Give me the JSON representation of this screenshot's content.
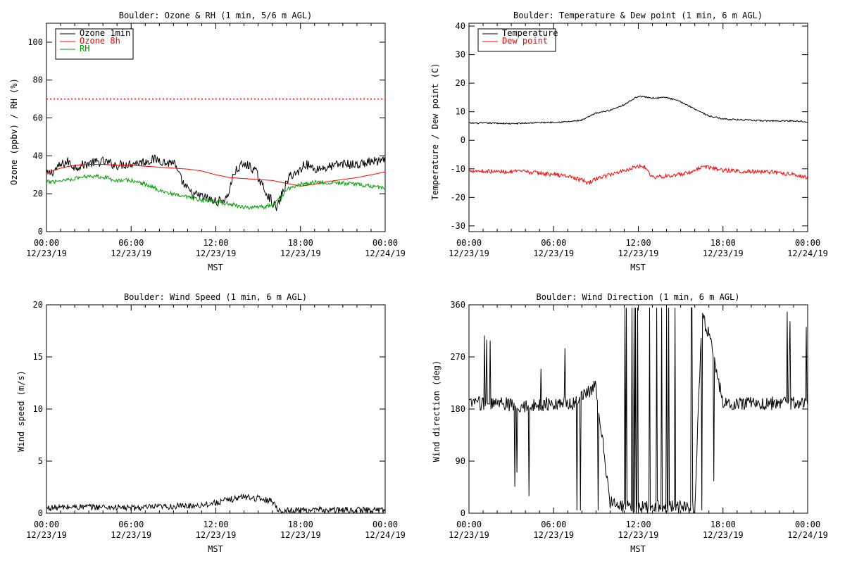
{
  "chart_data": [
    {
      "type": "line",
      "title": "Boulder: Ozone & RH (1 min, 5/6 m AGL)",
      "xlabel": "MST",
      "ylabel": "Ozone (ppbv) / RH (%)",
      "xlim": [
        0,
        24
      ],
      "ylim": [
        0,
        110
      ],
      "yticks": [
        0,
        20,
        40,
        60,
        80,
        100
      ],
      "xticks": [
        {
          "time": "00:00",
          "date": "12/23/19"
        },
        {
          "time": "06:00",
          "date": "12/23/19"
        },
        {
          "time": "12:00",
          "date": "12/23/19"
        },
        {
          "time": "18:00",
          "date": "12/23/19"
        },
        {
          "time": "00:00",
          "date": "12/24/19"
        }
      ],
      "legend_position": "top-left",
      "reference_lines": [
        {
          "y": 70,
          "color": "#ff0000",
          "style": "dotted"
        }
      ],
      "series": [
        {
          "name": "Ozone 1min",
          "color": "#000000",
          "noise": 2.5,
          "x": [
            0,
            0.5,
            1,
            1.5,
            2,
            3,
            4,
            5,
            6,
            7,
            7.5,
            8,
            8.5,
            9,
            9.3,
            9.8,
            10.3,
            10.8,
            11.3,
            11.8,
            12.3,
            12.8,
            13.3,
            13.8,
            14.3,
            14.8,
            15.3,
            15.8,
            16.3,
            16.8,
            17.3,
            17.8,
            18.3,
            19,
            20,
            21,
            22,
            23,
            24
          ],
          "y": [
            30,
            32,
            35,
            37,
            34,
            36,
            37,
            35,
            36,
            37,
            38,
            38,
            36,
            37,
            31,
            24,
            20,
            19,
            18,
            16,
            16,
            18,
            31,
            35,
            35,
            32,
            24,
            18,
            12,
            22,
            30,
            31,
            36,
            33,
            34,
            36,
            35,
            37,
            37
          ]
        },
        {
          "name": "Ozone 8h",
          "color": "#ff0000",
          "noise": 0,
          "x": [
            0,
            1,
            2,
            3,
            4,
            5,
            6,
            7,
            8,
            9,
            10,
            11,
            12,
            13,
            14,
            15,
            16,
            17,
            18,
            19,
            20,
            21,
            22,
            23,
            24
          ],
          "y": [
            31,
            33.5,
            35,
            35.5,
            35.5,
            35,
            35,
            34.5,
            34,
            33.5,
            33,
            32,
            30,
            28.5,
            28,
            27.5,
            27,
            25.5,
            24,
            25,
            26.5,
            27.5,
            28.5,
            30,
            31.5
          ]
        },
        {
          "name": "RH",
          "color": "#00a000",
          "noise": 1.1,
          "x": [
            0,
            1,
            2,
            3,
            4,
            5,
            6,
            7,
            8,
            9,
            10,
            11,
            12,
            13,
            14,
            15,
            16,
            16.5,
            17,
            18,
            19,
            20,
            21,
            22,
            23,
            24
          ],
          "y": [
            26,
            27,
            28,
            29.5,
            29,
            27,
            27,
            25,
            22,
            19.5,
            18,
            16.5,
            16,
            14.5,
            13,
            12.5,
            14,
            17,
            22,
            25,
            26,
            26,
            25.5,
            25,
            24,
            23
          ]
        }
      ]
    },
    {
      "type": "line",
      "title": "Boulder: Temperature & Dew point (1 min, 6 m AGL)",
      "xlabel": "MST",
      "ylabel": "Temperature / Dew point (C)",
      "xlim": [
        0,
        24
      ],
      "ylim": [
        -32,
        41
      ],
      "yticks": [
        -30,
        -20,
        -10,
        0,
        10,
        20,
        30,
        40
      ],
      "xticks": [
        {
          "time": "00:00",
          "date": "12/23/19"
        },
        {
          "time": "06:00",
          "date": "12/23/19"
        },
        {
          "time": "12:00",
          "date": "12/23/19"
        },
        {
          "time": "18:00",
          "date": "12/23/19"
        },
        {
          "time": "00:00",
          "date": "12/24/19"
        }
      ],
      "legend_position": "top-left",
      "reference_lines": [],
      "series": [
        {
          "name": "Temperature",
          "color": "#000000",
          "noise": 0.25,
          "x": [
            0,
            1,
            2,
            3,
            4,
            5,
            6,
            7,
            8,
            9,
            10,
            11,
            12,
            13,
            14,
            15,
            16,
            17,
            18,
            19,
            20,
            21,
            22,
            23,
            24
          ],
          "y": [
            6,
            6,
            6,
            5.8,
            6,
            6.2,
            6.3,
            6.5,
            7,
            9.5,
            10.5,
            12.5,
            15.5,
            14.8,
            15,
            13.5,
            11,
            8.5,
            7.5,
            7.2,
            7,
            6.8,
            6.8,
            6.8,
            6.5
          ]
        },
        {
          "name": "Dew point",
          "color": "#ff0000",
          "noise": 0.7,
          "x": [
            0,
            1,
            2,
            3,
            4,
            5,
            6,
            7,
            8,
            8.5,
            9,
            10,
            11,
            12,
            12.5,
            13,
            14,
            15,
            16,
            16.5,
            17,
            18,
            19,
            20,
            21,
            22,
            23,
            24
          ],
          "y": [
            -10.5,
            -10.8,
            -11,
            -11,
            -11,
            -11.5,
            -12,
            -12.5,
            -14,
            -15,
            -13.5,
            -12,
            -10.5,
            -9,
            -9.5,
            -13,
            -12.5,
            -12,
            -11,
            -9,
            -9.5,
            -10.5,
            -10.8,
            -11,
            -11,
            -11.5,
            -12,
            -13
          ]
        }
      ]
    },
    {
      "type": "line",
      "title": "Boulder: Wind Speed (1 min, 6 m AGL)",
      "xlabel": "MST",
      "ylabel": "Wind speed (m/s)",
      "xlim": [
        0,
        24
      ],
      "ylim": [
        0,
        20
      ],
      "yticks": [
        0,
        5,
        10,
        15,
        20
      ],
      "xticks": [
        {
          "time": "00:00",
          "date": "12/23/19"
        },
        {
          "time": "06:00",
          "date": "12/23/19"
        },
        {
          "time": "12:00",
          "date": "12/23/19"
        },
        {
          "time": "18:00",
          "date": "12/23/19"
        },
        {
          "time": "00:00",
          "date": "12/24/19"
        }
      ],
      "legend_position": "none",
      "reference_lines": [],
      "series": [
        {
          "name": "",
          "color": "#000000",
          "noise": 0.3,
          "x": [
            0,
            2,
            4,
            6,
            8,
            10,
            11,
            12,
            13,
            14,
            15,
            16,
            16.5,
            18,
            20,
            22,
            24
          ],
          "y": [
            0.5,
            0.6,
            0.6,
            0.5,
            0.6,
            0.7,
            0.8,
            1.0,
            1.3,
            1.6,
            1.4,
            1.2,
            0.2,
            0.3,
            0.3,
            0.3,
            0.3
          ]
        }
      ]
    },
    {
      "type": "line",
      "title": "Boulder: Wind Direction (1 min, 6 m AGL)",
      "xlabel": "MST",
      "ylabel": "Wind direction (deg)",
      "xlim": [
        0,
        24
      ],
      "ylim": [
        0,
        360
      ],
      "yticks": [
        0,
        90,
        180,
        270,
        360
      ],
      "xticks": [
        {
          "time": "00:00",
          "date": "12/23/19"
        },
        {
          "time": "06:00",
          "date": "12/23/19"
        },
        {
          "time": "12:00",
          "date": "12/23/19"
        },
        {
          "time": "18:00",
          "date": "12/23/19"
        },
        {
          "time": "00:00",
          "date": "12/24/19"
        }
      ],
      "legend_position": "none",
      "reference_lines": [],
      "series": [
        {
          "name": "",
          "color": "#000000",
          "noise": 12,
          "spikes": true,
          "x": [
            0,
            2,
            4,
            6,
            7.5,
            8,
            9,
            10,
            11,
            12,
            13,
            14,
            15,
            16,
            16.5,
            17,
            18,
            20,
            22,
            24
          ],
          "y": [
            190,
            190,
            185,
            190,
            190,
            200,
            220,
            20,
            10,
            10,
            10,
            10,
            10,
            10,
            340,
            310,
            190,
            190,
            190,
            190
          ]
        }
      ]
    }
  ]
}
